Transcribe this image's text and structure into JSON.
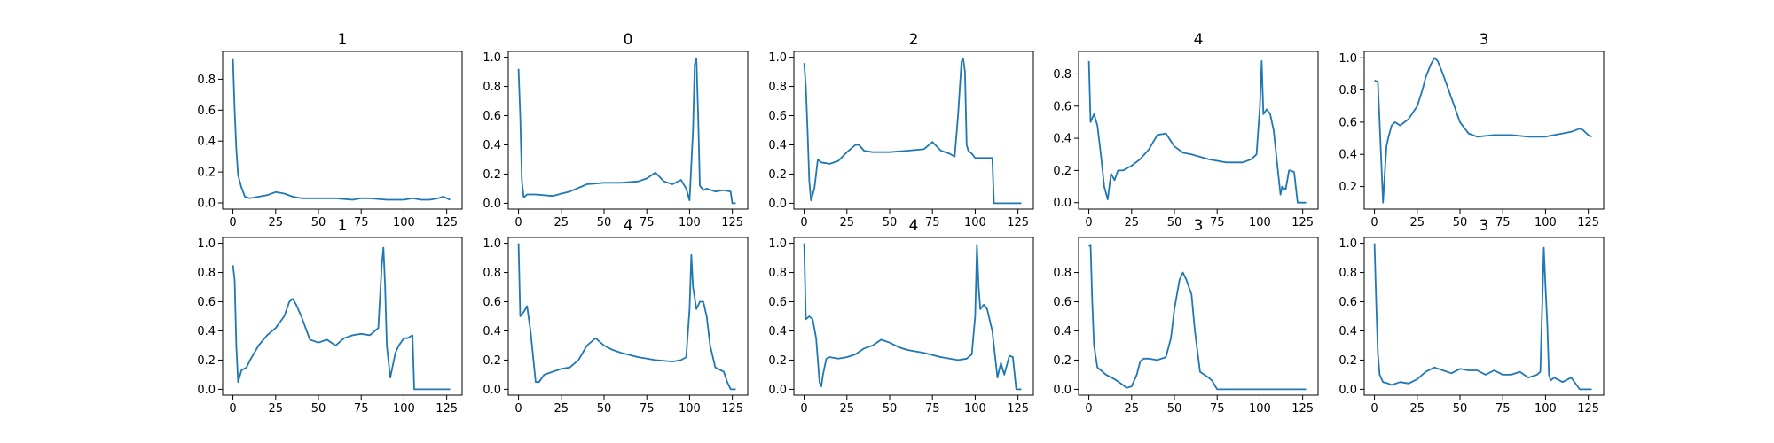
{
  "chart_data": [
    {
      "type": "line",
      "title": "1",
      "xticks": [
        "0",
        "25",
        "50",
        "75",
        "100",
        "125"
      ],
      "yticks": [
        "0.0",
        "0.2",
        "0.4",
        "0.6",
        "0.8"
      ],
      "xlim": [
        -6,
        134
      ],
      "ylim": [
        -0.04,
        0.98
      ],
      "x": [
        0,
        1,
        2,
        3,
        5,
        7,
        10,
        15,
        20,
        25,
        30,
        35,
        40,
        50,
        60,
        70,
        75,
        80,
        90,
        100,
        105,
        110,
        115,
        120,
        123,
        125,
        127
      ],
      "y": [
        0.93,
        0.6,
        0.35,
        0.18,
        0.1,
        0.04,
        0.03,
        0.04,
        0.05,
        0.07,
        0.06,
        0.04,
        0.03,
        0.03,
        0.03,
        0.02,
        0.03,
        0.03,
        0.02,
        0.02,
        0.03,
        0.02,
        0.02,
        0.03,
        0.04,
        0.03,
        0.02
      ]
    },
    {
      "type": "line",
      "title": "0",
      "xticks": [
        "0",
        "25",
        "50",
        "75",
        "100",
        "125"
      ],
      "yticks": [
        "0.0",
        "0.2",
        "0.4",
        "0.6",
        "0.8",
        "1.0"
      ],
      "xlim": [
        -6,
        134
      ],
      "ylim": [
        -0.04,
        1.04
      ],
      "x": [
        0,
        1,
        2,
        3,
        5,
        10,
        20,
        30,
        40,
        50,
        60,
        70,
        75,
        80,
        85,
        90,
        95,
        98,
        100,
        102,
        103,
        104,
        105,
        106,
        108,
        110,
        115,
        120,
        124,
        125,
        127
      ],
      "y": [
        0.92,
        0.6,
        0.15,
        0.04,
        0.06,
        0.06,
        0.05,
        0.08,
        0.13,
        0.14,
        0.14,
        0.15,
        0.17,
        0.21,
        0.15,
        0.13,
        0.16,
        0.1,
        0.02,
        0.5,
        0.95,
        0.99,
        0.6,
        0.12,
        0.09,
        0.1,
        0.08,
        0.09,
        0.08,
        0.0,
        0.0
      ]
    },
    {
      "type": "line",
      "title": "2",
      "xticks": [
        "0",
        "25",
        "50",
        "75",
        "100",
        "125"
      ],
      "yticks": [
        "0.0",
        "0.2",
        "0.4",
        "0.6",
        "0.8",
        "1.0"
      ],
      "xlim": [
        -6,
        134
      ],
      "ylim": [
        -0.04,
        1.04
      ],
      "x": [
        0,
        1,
        2,
        3,
        4,
        6,
        8,
        10,
        15,
        20,
        25,
        30,
        32,
        35,
        40,
        50,
        60,
        70,
        75,
        80,
        85,
        88,
        90,
        92,
        93,
        94,
        95,
        96,
        98,
        100,
        105,
        110,
        111,
        120,
        125,
        127
      ],
      "y": [
        0.96,
        0.8,
        0.5,
        0.15,
        0.02,
        0.1,
        0.3,
        0.28,
        0.27,
        0.29,
        0.35,
        0.4,
        0.4,
        0.36,
        0.35,
        0.35,
        0.36,
        0.37,
        0.42,
        0.36,
        0.34,
        0.32,
        0.6,
        0.97,
        0.99,
        0.9,
        0.4,
        0.36,
        0.34,
        0.31,
        0.31,
        0.31,
        0.0,
        0.0,
        0.0,
        0.0
      ]
    },
    {
      "type": "line",
      "title": "4",
      "xticks": [
        "0",
        "25",
        "50",
        "75",
        "100",
        "125"
      ],
      "yticks": [
        "0.0",
        "0.2",
        "0.4",
        "0.6",
        "0.8"
      ],
      "xlim": [
        -6,
        134
      ],
      "ylim": [
        -0.04,
        0.94
      ],
      "x": [
        0,
        1,
        3,
        5,
        7,
        9,
        11,
        13,
        15,
        17,
        20,
        25,
        30,
        35,
        40,
        45,
        50,
        55,
        60,
        70,
        80,
        90,
        95,
        98,
        100,
        101,
        102,
        104,
        106,
        108,
        110,
        112,
        113,
        115,
        117,
        118,
        120,
        122,
        123,
        125,
        127
      ],
      "y": [
        0.88,
        0.5,
        0.55,
        0.48,
        0.3,
        0.1,
        0.02,
        0.18,
        0.14,
        0.2,
        0.2,
        0.23,
        0.27,
        0.33,
        0.42,
        0.43,
        0.35,
        0.31,
        0.3,
        0.27,
        0.25,
        0.25,
        0.27,
        0.3,
        0.6,
        0.88,
        0.55,
        0.58,
        0.55,
        0.45,
        0.25,
        0.05,
        0.1,
        0.08,
        0.2,
        0.2,
        0.19,
        0.0,
        0.0,
        0.0,
        0.0
      ]
    },
    {
      "type": "line",
      "title": "3",
      "xticks": [
        "0",
        "25",
        "50",
        "75",
        "100",
        "125"
      ],
      "yticks": [
        "0.2",
        "0.4",
        "0.6",
        "0.8",
        "1.0"
      ],
      "xlim": [
        -6,
        134
      ],
      "ylim": [
        0.06,
        1.04
      ],
      "x": [
        0,
        2,
        4,
        5,
        7,
        8,
        10,
        12,
        15,
        20,
        25,
        28,
        30,
        33,
        35,
        37,
        40,
        45,
        50,
        55,
        60,
        70,
        80,
        90,
        100,
        105,
        110,
        115,
        120,
        122,
        125,
        127
      ],
      "y": [
        0.86,
        0.85,
        0.35,
        0.1,
        0.45,
        0.5,
        0.58,
        0.6,
        0.58,
        0.62,
        0.7,
        0.8,
        0.88,
        0.96,
        1.0,
        0.98,
        0.9,
        0.75,
        0.6,
        0.53,
        0.51,
        0.52,
        0.52,
        0.51,
        0.51,
        0.52,
        0.53,
        0.54,
        0.56,
        0.55,
        0.52,
        0.51
      ]
    },
    {
      "type": "line",
      "title": "1",
      "xticks": [
        "0",
        "25",
        "50",
        "75",
        "100",
        "125"
      ],
      "yticks": [
        "0.0",
        "0.2",
        "0.4",
        "0.6",
        "0.8",
        "1.0"
      ],
      "xlim": [
        -6,
        134
      ],
      "ylim": [
        -0.04,
        1.04
      ],
      "x": [
        0,
        1,
        2,
        3,
        5,
        8,
        10,
        15,
        20,
        25,
        30,
        33,
        35,
        37,
        40,
        45,
        50,
        55,
        60,
        65,
        70,
        75,
        80,
        85,
        87,
        88,
        89,
        90,
        92,
        95,
        97,
        100,
        102,
        105,
        106,
        110,
        115,
        120,
        125,
        127
      ],
      "y": [
        0.85,
        0.75,
        0.3,
        0.05,
        0.13,
        0.15,
        0.2,
        0.3,
        0.37,
        0.42,
        0.5,
        0.6,
        0.62,
        0.58,
        0.5,
        0.34,
        0.32,
        0.34,
        0.3,
        0.35,
        0.37,
        0.38,
        0.37,
        0.42,
        0.85,
        0.97,
        0.7,
        0.3,
        0.08,
        0.25,
        0.3,
        0.35,
        0.35,
        0.37,
        0.0,
        0.0,
        0.0,
        0.0,
        0.0,
        0.0
      ]
    },
    {
      "type": "line",
      "title": "4",
      "xticks": [
        "0",
        "25",
        "50",
        "75",
        "100",
        "125"
      ],
      "yticks": [
        "0.0",
        "0.2",
        "0.4",
        "0.6",
        "0.8",
        "1.0"
      ],
      "xlim": [
        -6,
        134
      ],
      "ylim": [
        -0.04,
        1.04
      ],
      "x": [
        0,
        1,
        3,
        5,
        7,
        10,
        12,
        15,
        20,
        25,
        30,
        35,
        40,
        45,
        50,
        55,
        60,
        70,
        80,
        90,
        95,
        98,
        100,
        101,
        102,
        104,
        106,
        108,
        110,
        112,
        115,
        120,
        122,
        124,
        125,
        127
      ],
      "y": [
        1.0,
        0.5,
        0.53,
        0.57,
        0.4,
        0.05,
        0.05,
        0.1,
        0.12,
        0.14,
        0.15,
        0.2,
        0.3,
        0.35,
        0.3,
        0.27,
        0.25,
        0.22,
        0.2,
        0.19,
        0.2,
        0.22,
        0.55,
        0.92,
        0.7,
        0.55,
        0.6,
        0.6,
        0.5,
        0.3,
        0.15,
        0.12,
        0.05,
        0.0,
        0.0,
        0.0
      ]
    },
    {
      "type": "line",
      "title": "4",
      "xticks": [
        "0",
        "25",
        "50",
        "75",
        "100",
        "125"
      ],
      "yticks": [
        "0.0",
        "0.2",
        "0.4",
        "0.6",
        "0.8",
        "1.0"
      ],
      "xlim": [
        -6,
        134
      ],
      "ylim": [
        -0.04,
        1.04
      ],
      "x": [
        0,
        1,
        3,
        5,
        7,
        9,
        10,
        11,
        13,
        15,
        20,
        25,
        30,
        35,
        40,
        45,
        50,
        55,
        60,
        70,
        80,
        90,
        95,
        98,
        100,
        101,
        102,
        103,
        105,
        107,
        110,
        113,
        115,
        117,
        120,
        122,
        124,
        125,
        127
      ],
      "y": [
        1.0,
        0.48,
        0.5,
        0.48,
        0.35,
        0.05,
        0.02,
        0.1,
        0.21,
        0.22,
        0.21,
        0.22,
        0.24,
        0.28,
        0.3,
        0.34,
        0.32,
        0.29,
        0.27,
        0.25,
        0.22,
        0.2,
        0.21,
        0.24,
        0.5,
        0.99,
        0.7,
        0.55,
        0.58,
        0.55,
        0.4,
        0.08,
        0.18,
        0.1,
        0.23,
        0.22,
        0.0,
        0.0,
        0.0
      ]
    },
    {
      "type": "line",
      "title": "3",
      "xticks": [
        "0",
        "25",
        "50",
        "75",
        "100",
        "125"
      ],
      "yticks": [
        "0.0",
        "0.2",
        "0.4",
        "0.6",
        "0.8"
      ],
      "xlim": [
        -6,
        134
      ],
      "ylim": [
        -0.04,
        1.04
      ],
      "x": [
        0,
        1,
        2,
        3,
        5,
        8,
        10,
        15,
        20,
        22,
        25,
        28,
        30,
        32,
        35,
        40,
        45,
        48,
        50,
        53,
        55,
        57,
        60,
        62,
        65,
        70,
        72,
        75,
        80,
        90,
        100,
        110,
        120,
        125,
        127
      ],
      "y": [
        0.98,
        0.99,
        0.6,
        0.3,
        0.15,
        0.12,
        0.1,
        0.07,
        0.03,
        0.01,
        0.02,
        0.1,
        0.19,
        0.21,
        0.21,
        0.2,
        0.22,
        0.35,
        0.55,
        0.75,
        0.8,
        0.75,
        0.65,
        0.4,
        0.12,
        0.08,
        0.06,
        0.0,
        0.0,
        0.0,
        0.0,
        0.0,
        0.0,
        0.0,
        0.0
      ]
    },
    {
      "type": "line",
      "title": "3",
      "xticks": [
        "0",
        "25",
        "50",
        "75",
        "100",
        "125"
      ],
      "yticks": [
        "0.0",
        "0.2",
        "0.4",
        "0.6",
        "0.8",
        "1.0"
      ],
      "xlim": [
        -6,
        134
      ],
      "ylim": [
        -0.04,
        1.04
      ],
      "x": [
        0,
        1,
        2,
        3,
        5,
        8,
        10,
        15,
        20,
        25,
        30,
        35,
        40,
        45,
        50,
        55,
        60,
        65,
        70,
        75,
        80,
        85,
        90,
        95,
        97,
        98,
        99,
        100,
        101,
        102,
        103,
        105,
        110,
        115,
        120,
        125,
        127
      ],
      "y": [
        1.0,
        0.6,
        0.25,
        0.1,
        0.05,
        0.04,
        0.03,
        0.05,
        0.04,
        0.07,
        0.12,
        0.15,
        0.13,
        0.11,
        0.14,
        0.13,
        0.13,
        0.1,
        0.13,
        0.1,
        0.1,
        0.12,
        0.08,
        0.1,
        0.12,
        0.55,
        0.97,
        0.7,
        0.45,
        0.1,
        0.06,
        0.08,
        0.05,
        0.08,
        0.0,
        0.0,
        0.0
      ]
    }
  ]
}
